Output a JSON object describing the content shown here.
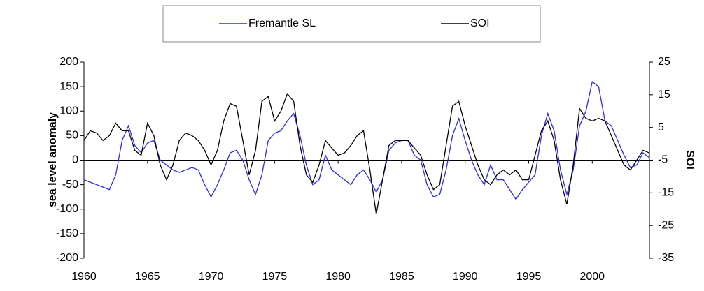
{
  "chart_data": {
    "type": "line",
    "x": [
      1960,
      1960.5,
      1961,
      1961.5,
      1962,
      1962.5,
      1963,
      1963.5,
      1964,
      1964.5,
      1965,
      1965.5,
      1966,
      1966.5,
      1967,
      1967.5,
      1968,
      1968.5,
      1969,
      1969.5,
      1970,
      1970.5,
      1971,
      1971.5,
      1972,
      1972.5,
      1973,
      1973.5,
      1974,
      1974.5,
      1975,
      1975.5,
      1976,
      1976.5,
      1977,
      1977.5,
      1978,
      1978.5,
      1979,
      1979.5,
      1980,
      1980.5,
      1981,
      1981.5,
      1982,
      1982.5,
      1983,
      1983.5,
      1984,
      1984.5,
      1985,
      1985.5,
      1986,
      1986.5,
      1987,
      1987.5,
      1988,
      1988.5,
      1989,
      1989.5,
      1990,
      1990.5,
      1991,
      1991.5,
      1992,
      1992.5,
      1993,
      1993.5,
      1994,
      1994.5,
      1995,
      1995.5,
      1996,
      1996.5,
      1997,
      1997.5,
      1998,
      1998.5,
      1999,
      1999.5,
      2000,
      2000.5,
      2001,
      2001.5,
      2002,
      2002.5,
      2003,
      2003.5,
      2004,
      2004.5
    ],
    "series": [
      {
        "name": "Fremantle SL",
        "color": "#2a2aff",
        "values": [
          -40,
          -45,
          -50,
          -55,
          -60,
          -30,
          40,
          70,
          30,
          15,
          35,
          40,
          0,
          -10,
          -20,
          -25,
          -20,
          -15,
          -20,
          -50,
          -75,
          -50,
          -20,
          15,
          20,
          0,
          -40,
          -70,
          -30,
          40,
          55,
          60,
          80,
          95,
          50,
          -10,
          -50,
          -40,
          10,
          -20,
          -30,
          -40,
          -50,
          -30,
          -20,
          -40,
          -65,
          -40,
          20,
          35,
          40,
          40,
          10,
          0,
          -50,
          -75,
          -70,
          -20,
          50,
          85,
          40,
          0,
          -30,
          -50,
          -10,
          -40,
          -40,
          -60,
          -80,
          -60,
          -45,
          -30,
          50,
          95,
          60,
          -20,
          -70,
          -20,
          70,
          100,
          160,
          150,
          80,
          70,
          40,
          10,
          -15,
          -10,
          15,
          5
        ]
      },
      {
        "name": "SOI",
        "color": "#000000",
        "axis": "y2",
        "values": [
          1,
          4,
          3.3,
          1,
          2.5,
          6.3,
          4,
          4,
          -2,
          -3.5,
          6.3,
          2.5,
          -6.5,
          -11,
          -6.5,
          1,
          3.3,
          2.5,
          1,
          -2,
          -6.5,
          -2,
          7,
          12.3,
          11.5,
          1,
          -9.5,
          -2,
          13,
          14.5,
          7,
          10,
          15.3,
          13,
          -0.5,
          -9.5,
          -11.8,
          -6.5,
          1,
          -1.3,
          -3.5,
          -2.8,
          -0.5,
          2.5,
          4,
          -8,
          -21.5,
          -11,
          -0.5,
          1,
          1,
          1,
          -1.3,
          -3.5,
          -9.5,
          -14,
          -12.5,
          -0.5,
          11.5,
          13,
          5.5,
          -0.5,
          -6.5,
          -11,
          -12.5,
          -9.5,
          -8,
          -9.5,
          -8,
          -11,
          -11,
          -3.5,
          4,
          7,
          1,
          -11,
          -18.5,
          -6.5,
          10.8,
          7.8,
          7,
          7.8,
          7,
          2.5,
          -2,
          -6.5,
          -8,
          -5,
          -2,
          -2.8
        ]
      }
    ],
    "y_label": "sea level anomaly",
    "y2_label": "SOI",
    "xlim": [
      1960,
      2004.5
    ],
    "xticks": [
      1960,
      1965,
      1970,
      1975,
      1980,
      1985,
      1990,
      1995,
      2000
    ],
    "ylim": [
      -200,
      200
    ],
    "yticks": [
      -200,
      -150,
      -100,
      -50,
      0,
      50,
      100,
      150,
      200
    ],
    "y2lim": [
      -35,
      25
    ],
    "y2ticks": [
      -35,
      -25,
      -15,
      -5,
      5,
      15,
      25
    ],
    "legend": "top"
  }
}
